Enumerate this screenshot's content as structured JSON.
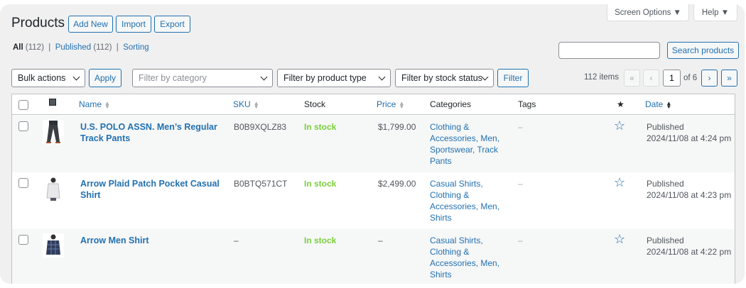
{
  "header": {
    "title": "Products",
    "add_new": "Add New",
    "import": "Import",
    "export": "Export",
    "screen_options": "Screen Options ▼",
    "help": "Help ▼"
  },
  "views": [
    {
      "label": "All",
      "count": "(112)"
    },
    {
      "label": "Published",
      "count": "(112)"
    },
    {
      "label": "Sorting"
    }
  ],
  "search": {
    "value": "",
    "button": "Search products"
  },
  "toolbar": {
    "bulk_actions": "Bulk actions",
    "apply": "Apply",
    "filter_category": "Filter by category",
    "filter_type": "Filter by product type",
    "filter_stock": "Filter by stock status",
    "filter": "Filter"
  },
  "pagination": {
    "items": "112 items",
    "first": "«",
    "prev": "‹",
    "current": "1",
    "of": "of 6",
    "next": "›",
    "last": "»"
  },
  "columns": {
    "image": "image-icon",
    "name": "Name",
    "sku": "SKU",
    "stock": "Stock",
    "price": "Price",
    "categories": "Categories",
    "tags": "Tags",
    "featured": "★",
    "date": "Date"
  },
  "colors": {
    "accent": "#2271b1",
    "in_stock": "#7ad03a"
  },
  "rows": [
    {
      "name": "U.S. POLO ASSN. Men’s Regular Track Pants",
      "sku": "B0B9XQLZ83",
      "stock": "In stock",
      "price": "$1,799.00",
      "categories": "Clothing & Accessories, Men, Sportswear, Track Pants",
      "tags": "–",
      "status": "Published",
      "date": "2024/11/08 at 4:24 pm",
      "thumb": "pants"
    },
    {
      "name": "Arrow Plaid Patch Pocket Casual Shirt",
      "sku": "B0BTQ571CT",
      "stock": "In stock",
      "price": "$2,499.00",
      "categories": "Casual Shirts, Clothing & Accessories, Men, Shirts",
      "tags": "–",
      "status": "Published",
      "date": "2024/11/08 at 4:23 pm",
      "thumb": "white-shirt"
    },
    {
      "name": "Arrow Men Shirt",
      "sku": "–",
      "stock": "In stock",
      "price": "–",
      "categories": "Casual Shirts, Clothing & Accessories, Men, Shirts",
      "tags": "–",
      "status": "Published",
      "date": "2024/11/08 at 4:22 pm",
      "thumb": "blue-shirt"
    }
  ]
}
